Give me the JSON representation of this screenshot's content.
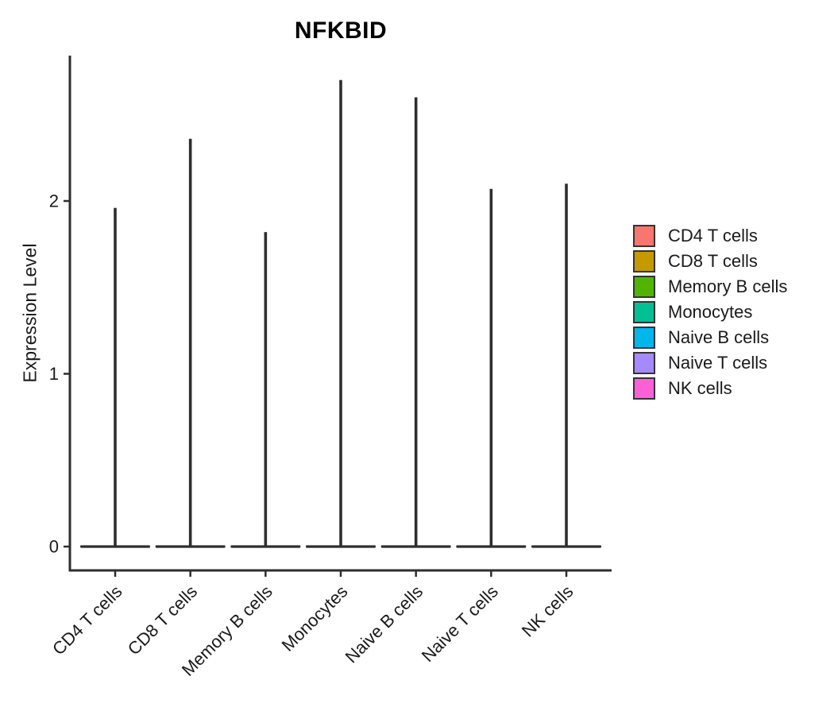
{
  "figure": {
    "title": "NFKBID",
    "y_axis_label": "Expression Level"
  },
  "chart_data": {
    "type": "violin",
    "title": "NFKBID",
    "xlabel": "",
    "ylabel": "Expression Level",
    "categories": [
      "CD4 T cells",
      "CD8 T cells",
      "Memory B cells",
      "Monocytes",
      "Naive B cells",
      "Naive T cells",
      "NK cells"
    ],
    "series": [
      {
        "name": "CD4 T cells",
        "color": "#F8766D",
        "density_bulk_at": 0,
        "tail_max": 1.96
      },
      {
        "name": "CD8 T cells",
        "color": "#C49A00",
        "density_bulk_at": 0,
        "tail_max": 2.36
      },
      {
        "name": "Memory B cells",
        "color": "#53B400",
        "density_bulk_at": 0,
        "tail_max": 1.82
      },
      {
        "name": "Monocytes",
        "color": "#00C094",
        "density_bulk_at": 0,
        "tail_max": 2.7
      },
      {
        "name": "Naive B cells",
        "color": "#00B6EB",
        "density_bulk_at": 0,
        "tail_max": 2.6
      },
      {
        "name": "Naive T cells",
        "color": "#A58AFF",
        "density_bulk_at": 0,
        "tail_max": 2.07
      },
      {
        "name": "NK cells",
        "color": "#FB61D7",
        "density_bulk_at": 0,
        "tail_max": 2.1
      }
    ],
    "yticks": [
      0,
      1,
      2
    ],
    "ylim": [
      -0.14,
      2.84
    ],
    "grid": false,
    "legend_position": "right",
    "outline_color": "#2e2e2e",
    "text_color": "#1a1a1a"
  },
  "legend": {
    "items": [
      {
        "label": "CD4 T cells",
        "color": "#F8766D"
      },
      {
        "label": "CD8 T cells",
        "color": "#C49A00"
      },
      {
        "label": "Memory B cells",
        "color": "#53B400"
      },
      {
        "label": "Monocytes",
        "color": "#00C094"
      },
      {
        "label": "Naive B cells",
        "color": "#00B6EB"
      },
      {
        "label": "Naive T cells",
        "color": "#A58AFF"
      },
      {
        "label": "NK cells",
        "color": "#FB61D7"
      }
    ]
  }
}
